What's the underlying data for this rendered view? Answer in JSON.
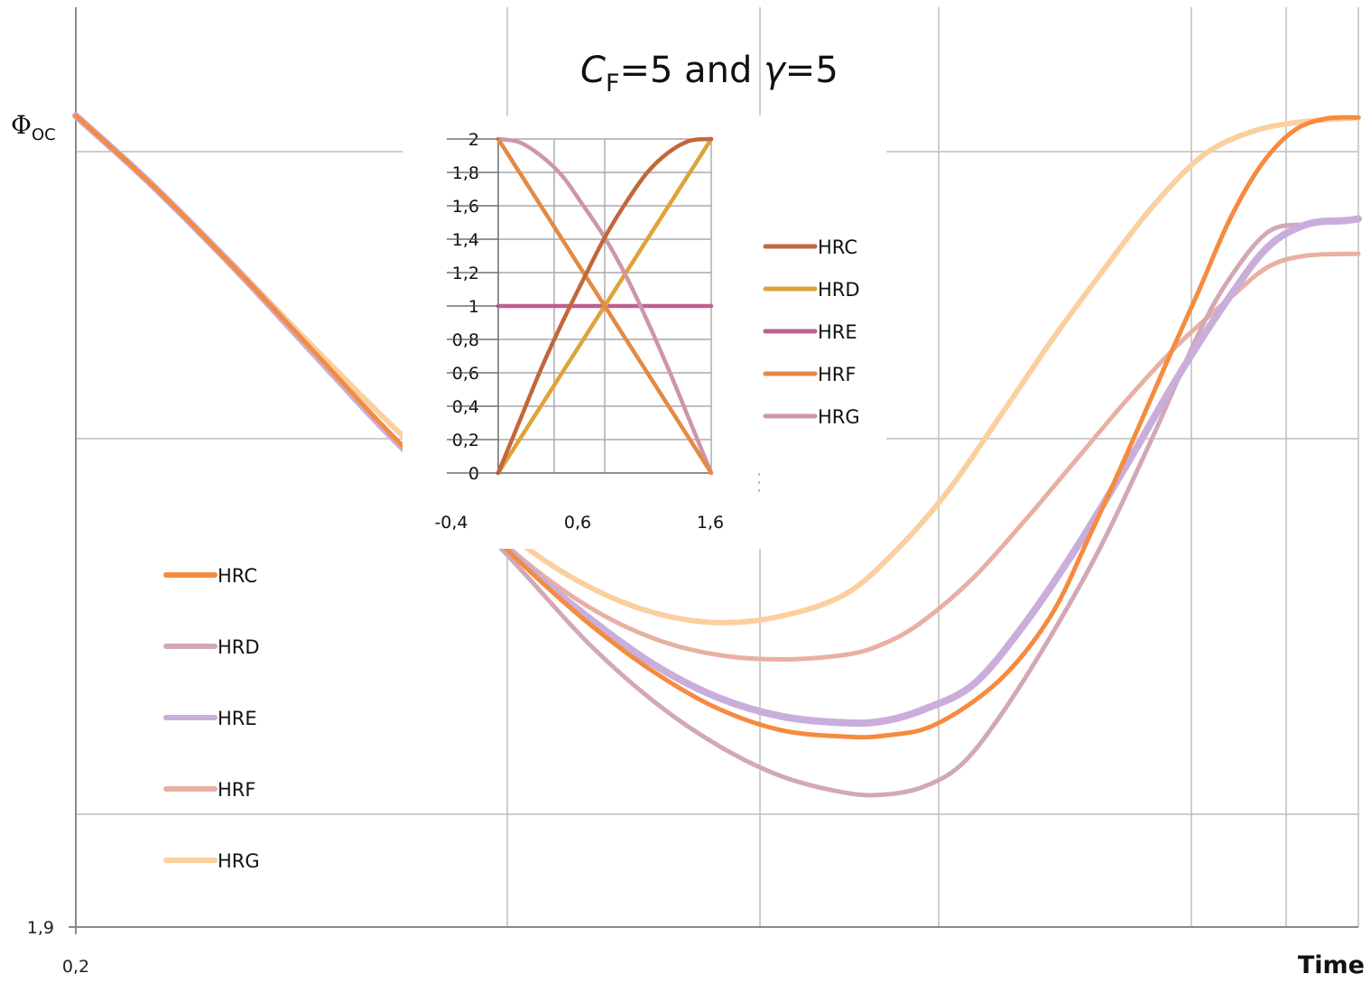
{
  "chart_data": [
    {
      "type": "line",
      "title": {
        "c_letter": "C",
        "c_sub": "F",
        "part1": "=5 and ",
        "gamma": "γ",
        "part2": "=5"
      },
      "ylabel": {
        "main": "Φ",
        "sub": "OC"
      },
      "xlabel": "Time",
      "x_tick_labels": [
        "0,2"
      ],
      "y_tick_labels": [
        "1,9"
      ],
      "grid": true,
      "legend_position": "left",
      "series": [
        {
          "name": "HRC",
          "color": "#f58b3f",
          "values": [
            [
              0,
              0.882
            ],
            [
              0.057,
              0.81
            ],
            [
              0.12,
              0.722
            ],
            [
              0.18,
              0.634
            ],
            [
              0.24,
              0.544
            ],
            [
              0.3,
              0.46
            ],
            [
              0.35,
              0.392
            ],
            [
              0.4,
              0.33
            ],
            [
              0.45,
              0.278
            ],
            [
              0.5,
              0.238
            ],
            [
              0.55,
              0.214
            ],
            [
              0.6,
              0.207
            ],
            [
              0.63,
              0.208
            ],
            [
              0.67,
              0.22
            ],
            [
              0.72,
              0.268
            ],
            [
              0.76,
              0.338
            ],
            [
              0.79,
              0.424
            ],
            [
              0.82,
              0.516
            ],
            [
              0.85,
              0.612
            ],
            [
              0.875,
              0.69
            ],
            [
              0.9,
              0.77
            ],
            [
              0.925,
              0.83
            ],
            [
              0.95,
              0.866
            ],
            [
              0.975,
              0.879
            ],
            [
              1.0,
              0.88
            ]
          ]
        },
        {
          "name": "HRD",
          "color": "#d3a8b6",
          "values": [
            [
              0,
              0.882
            ],
            [
              0.057,
              0.81
            ],
            [
              0.12,
              0.722
            ],
            [
              0.18,
              0.634
            ],
            [
              0.24,
              0.544
            ],
            [
              0.3,
              0.458
            ],
            [
              0.35,
              0.384
            ],
            [
              0.4,
              0.308
            ],
            [
              0.45,
              0.246
            ],
            [
              0.5,
              0.198
            ],
            [
              0.55,
              0.164
            ],
            [
              0.6,
              0.146
            ],
            [
              0.63,
              0.144
            ],
            [
              0.66,
              0.152
            ],
            [
              0.69,
              0.176
            ],
            [
              0.72,
              0.228
            ],
            [
              0.76,
              0.316
            ],
            [
              0.8,
              0.416
            ],
            [
              0.84,
              0.534
            ],
            [
              0.875,
              0.644
            ],
            [
              0.9,
              0.706
            ],
            [
              0.93,
              0.756
            ],
            [
              0.96,
              0.764
            ],
            [
              0.99,
              0.768
            ],
            [
              1.0,
              0.769
            ]
          ]
        },
        {
          "name": "HRE",
          "color": "#c9aedb",
          "values": [
            [
              0,
              0.882
            ],
            [
              0.057,
              0.81
            ],
            [
              0.12,
              0.722
            ],
            [
              0.18,
              0.632
            ],
            [
              0.24,
              0.542
            ],
            [
              0.3,
              0.46
            ],
            [
              0.35,
              0.394
            ],
            [
              0.4,
              0.336
            ],
            [
              0.45,
              0.286
            ],
            [
              0.5,
              0.25
            ],
            [
              0.55,
              0.229
            ],
            [
              0.6,
              0.222
            ],
            [
              0.63,
              0.224
            ],
            [
              0.66,
              0.236
            ],
            [
              0.7,
              0.264
            ],
            [
              0.74,
              0.33
            ],
            [
              0.78,
              0.412
            ],
            [
              0.82,
              0.504
            ],
            [
              0.86,
              0.6
            ],
            [
              0.9,
              0.686
            ],
            [
              0.93,
              0.74
            ],
            [
              0.96,
              0.764
            ],
            [
              0.99,
              0.768
            ],
            [
              1.0,
              0.77
            ]
          ]
        },
        {
          "name": "HRF",
          "color": "#e8b0a4",
          "values": [
            [
              0,
              0.882
            ],
            [
              0.057,
              0.81
            ],
            [
              0.12,
              0.722
            ],
            [
              0.18,
              0.632
            ],
            [
              0.24,
              0.544
            ],
            [
              0.3,
              0.462
            ],
            [
              0.35,
              0.398
            ],
            [
              0.4,
              0.348
            ],
            [
              0.45,
              0.314
            ],
            [
              0.5,
              0.296
            ],
            [
              0.55,
              0.291
            ],
            [
              0.6,
              0.296
            ],
            [
              0.63,
              0.308
            ],
            [
              0.66,
              0.332
            ],
            [
              0.7,
              0.38
            ],
            [
              0.74,
              0.442
            ],
            [
              0.78,
              0.508
            ],
            [
              0.82,
              0.574
            ],
            [
              0.86,
              0.634
            ],
            [
              0.9,
              0.684
            ],
            [
              0.93,
              0.718
            ],
            [
              0.96,
              0.73
            ],
            [
              1.0,
              0.732
            ]
          ]
        },
        {
          "name": "HRG",
          "color": "#fbcf9e",
          "values": [
            [
              0,
              0.882
            ],
            [
              0.057,
              0.81
            ],
            [
              0.12,
              0.724
            ],
            [
              0.18,
              0.638
            ],
            [
              0.24,
              0.554
            ],
            [
              0.3,
              0.476
            ],
            [
              0.35,
              0.414
            ],
            [
              0.4,
              0.37
            ],
            [
              0.45,
              0.342
            ],
            [
              0.5,
              0.331
            ],
            [
              0.55,
              0.338
            ],
            [
              0.6,
              0.362
            ],
            [
              0.64,
              0.41
            ],
            [
              0.68,
              0.474
            ],
            [
              0.72,
              0.554
            ],
            [
              0.76,
              0.636
            ],
            [
              0.8,
              0.712
            ],
            [
              0.84,
              0.784
            ],
            [
              0.88,
              0.84
            ],
            [
              0.92,
              0.866
            ],
            [
              0.96,
              0.876
            ],
            [
              1.0,
              0.88
            ]
          ]
        }
      ]
    },
    {
      "type": "line",
      "x_tick_labels": [
        "-0,4",
        "0,6",
        "1,6"
      ],
      "y_ticks": [
        "0",
        "0,2",
        "0,4",
        "0,6",
        "0,8",
        "1",
        "1,2",
        "1,4",
        "1,6",
        "1,8",
        "2"
      ],
      "ylim": [
        0,
        2
      ],
      "grid": true,
      "legend_position": "right",
      "series": [
        {
          "name": "HRC",
          "color": "#c2673a",
          "values": [
            [
              0,
              0
            ],
            [
              0.1,
              0.31
            ],
            [
              0.2,
              0.62
            ],
            [
              0.3,
              0.9
            ],
            [
              0.4,
              1.16
            ],
            [
              0.5,
              1.41
            ],
            [
              0.6,
              1.62
            ],
            [
              0.7,
              1.8
            ],
            [
              0.8,
              1.92
            ],
            [
              0.9,
              1.99
            ],
            [
              1.0,
              2.0
            ]
          ]
        },
        {
          "name": "HRD",
          "color": "#dea33a",
          "values": [
            [
              0,
              0
            ],
            [
              1.0,
              2.0
            ]
          ]
        },
        {
          "name": "HRE",
          "color": "#c06090",
          "values": [
            [
              0,
              1
            ],
            [
              1.0,
              1
            ]
          ]
        },
        {
          "name": "HRF",
          "color": "#e38a45",
          "values": [
            [
              0,
              2
            ],
            [
              1.0,
              0
            ]
          ]
        },
        {
          "name": "HRG",
          "color": "#cf95a8",
          "values": [
            [
              0,
              2
            ],
            [
              0.1,
              1.98
            ],
            [
              0.2,
              1.9
            ],
            [
              0.3,
              1.78
            ],
            [
              0.4,
              1.6
            ],
            [
              0.5,
              1.41
            ],
            [
              0.6,
              1.18
            ],
            [
              0.7,
              0.91
            ],
            [
              0.8,
              0.62
            ],
            [
              0.9,
              0.31
            ],
            [
              1.0,
              0
            ]
          ]
        }
      ]
    }
  ]
}
